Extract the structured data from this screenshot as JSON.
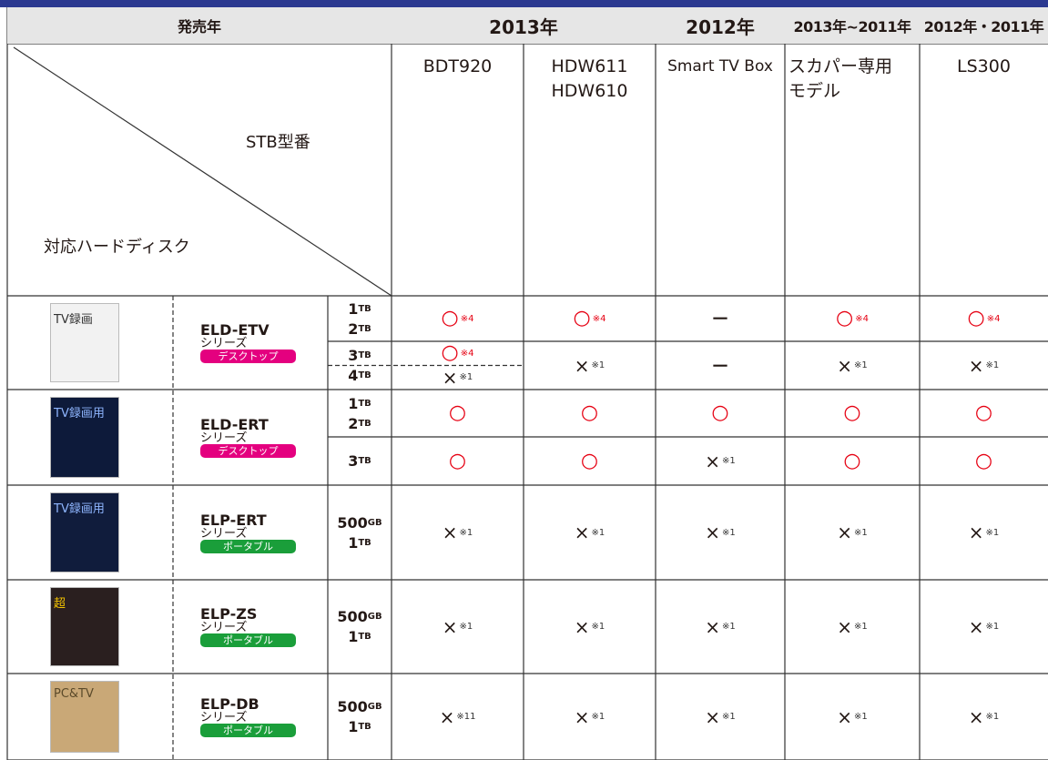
{
  "header": {
    "release_year": "発売年",
    "years": [
      "2013年",
      "2012年",
      "2013年~2011年",
      "2012年・2011年"
    ]
  },
  "corner": {
    "stb": "STB型番",
    "hdd": "対応ハードディスク"
  },
  "models": [
    [
      "BDT920"
    ],
    [
      "HDW611",
      "HDW610"
    ],
    [
      "Smart TV Box"
    ],
    [
      "スカパー専用",
      "モデル"
    ],
    [
      "LS300"
    ]
  ],
  "products": [
    {
      "image_text": "TV録画",
      "name": "ELD-ETV",
      "series": "シリーズ",
      "type": "デスクトップ",
      "badge_color": "#e4007f",
      "rows": [
        {
          "capacities": [
            {
              "num": "1",
              "unit": "TB"
            },
            {
              "num": "2",
              "unit": "TB"
            }
          ],
          "cells": [
            {
              "mark": "○",
              "note": "※4"
            },
            {
              "mark": "○",
              "note": "※4"
            },
            {
              "mark": "－"
            },
            {
              "mark": "○",
              "note": "※4"
            },
            {
              "mark": "○",
              "note": "※4"
            }
          ]
        },
        {
          "capacities": [
            {
              "num": "3",
              "unit": "TB"
            },
            {
              "num": "4",
              "unit": "TB"
            }
          ],
          "cells": [
            {
              "split": [
                {
                  "mark": "○",
                  "note": "※4"
                },
                {
                  "mark": "×",
                  "note": "※1"
                }
              ]
            },
            {
              "mark": "×",
              "note": "※1"
            },
            {
              "mark": "－"
            },
            {
              "mark": "×",
              "note": "※1"
            },
            {
              "mark": "×",
              "note": "※1"
            }
          ]
        }
      ]
    },
    {
      "image_text": "TV録画用",
      "name": "ELD-ERT",
      "series": "シリーズ",
      "type": "デスクトップ",
      "badge_color": "#e4007f",
      "rows": [
        {
          "capacities": [
            {
              "num": "1",
              "unit": "TB"
            },
            {
              "num": "2",
              "unit": "TB"
            }
          ],
          "cells": [
            {
              "mark": "○"
            },
            {
              "mark": "○"
            },
            {
              "mark": "○"
            },
            {
              "mark": "○"
            },
            {
              "mark": "○"
            }
          ]
        },
        {
          "capacities": [
            {
              "num": "3",
              "unit": "TB"
            }
          ],
          "cells": [
            {
              "mark": "○"
            },
            {
              "mark": "○"
            },
            {
              "mark": "×",
              "note": "※1"
            },
            {
              "mark": "○"
            },
            {
              "mark": "○"
            }
          ]
        }
      ]
    },
    {
      "image_text": "TV録画用",
      "name": "ELP-ERT",
      "series": "シリーズ",
      "type": "ポータブル",
      "badge_color": "#1a9e3a",
      "rows": [
        {
          "capacities": [
            {
              "num": "500",
              "unit": "GB"
            },
            {
              "num": "1",
              "unit": "TB"
            }
          ],
          "cells": [
            {
              "mark": "×",
              "note": "※1"
            },
            {
              "mark": "×",
              "note": "※1"
            },
            {
              "mark": "×",
              "note": "※1"
            },
            {
              "mark": "×",
              "note": "※1"
            },
            {
              "mark": "×",
              "note": "※1"
            }
          ]
        }
      ]
    },
    {
      "image_text": "超",
      "name": "ELP-ZS",
      "series": "シリーズ",
      "type": "ポータブル",
      "badge_color": "#1a9e3a",
      "rows": [
        {
          "capacities": [
            {
              "num": "500",
              "unit": "GB"
            },
            {
              "num": "1",
              "unit": "TB"
            }
          ],
          "cells": [
            {
              "mark": "×",
              "note": "※1"
            },
            {
              "mark": "×",
              "note": "※1"
            },
            {
              "mark": "×",
              "note": "※1"
            },
            {
              "mark": "×",
              "note": "※1"
            },
            {
              "mark": "×",
              "note": "※1"
            }
          ]
        }
      ]
    },
    {
      "image_text": "PC&TV",
      "name": "ELP-DB",
      "series": "シリーズ",
      "type": "ポータブル",
      "badge_color": "#1a9e3a",
      "rows": [
        {
          "capacities": [
            {
              "num": "500",
              "unit": "GB"
            },
            {
              "num": "1",
              "unit": "TB"
            }
          ],
          "cells": [
            {
              "mark": "×",
              "note": "※11"
            },
            {
              "mark": "×",
              "note": "※1"
            },
            {
              "mark": "×",
              "note": "※1"
            },
            {
              "mark": "×",
              "note": "※1"
            },
            {
              "mark": "×",
              "note": "※1"
            }
          ]
        }
      ]
    }
  ]
}
